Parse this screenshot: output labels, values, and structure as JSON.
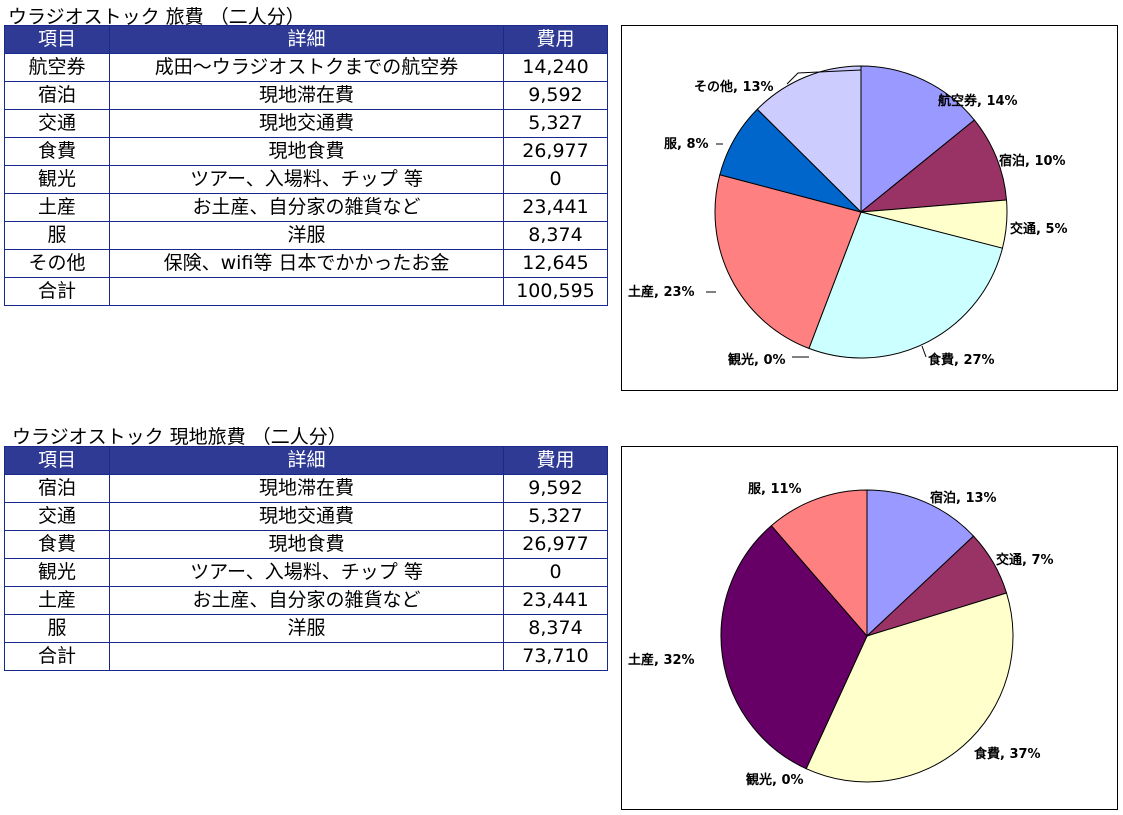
{
  "table1": {
    "title": "ウラジオストック 旅費 （二人分）",
    "headers": [
      "項目",
      "詳細",
      "費用"
    ],
    "rows": [
      [
        "航空券",
        "成田～ウラジオストクまでの航空券",
        "14,240"
      ],
      [
        "宿泊",
        "現地滞在費",
        "9,592"
      ],
      [
        "交通",
        "現地交通費",
        "5,327"
      ],
      [
        "食費",
        "現地食費",
        "26,977"
      ],
      [
        "観光",
        "ツアー、入場料、チップ 等",
        "0"
      ],
      [
        "土産",
        "お土産、自分家の雑貨など",
        "23,441"
      ],
      [
        "服",
        "洋服",
        "8,374"
      ],
      [
        "その他",
        "保険、wifi等 日本でかかったお金",
        "12,645"
      ],
      [
        "合計",
        "",
        "100,595"
      ]
    ]
  },
  "table2": {
    "title": "ウラジオストック 現地旅費 （二人分）",
    "headers": [
      "項目",
      "詳細",
      "費用"
    ],
    "rows": [
      [
        "宿泊",
        "現地滞在費",
        "9,592"
      ],
      [
        "交通",
        "現地交通費",
        "5,327"
      ],
      [
        "食費",
        "現地食費",
        "26,977"
      ],
      [
        "観光",
        "ツアー、入場料、チップ 等",
        "0"
      ],
      [
        "土産",
        "お土産、自分家の雑貨など",
        "23,441"
      ],
      [
        "服",
        "洋服",
        "8,374"
      ],
      [
        "合計",
        "",
        "73,710"
      ]
    ]
  },
  "chart_data": [
    {
      "type": "pie",
      "title": "",
      "legend": "none",
      "slices": [
        {
          "label": "航空券",
          "value": 14240,
          "percent_label": "航空券, 14%",
          "color": "#9999ff"
        },
        {
          "label": "宿泊",
          "value": 9592,
          "percent_label": "宿泊, 10%",
          "color": "#993366"
        },
        {
          "label": "交通",
          "value": 5327,
          "percent_label": "交通, 5%",
          "color": "#ffffcc"
        },
        {
          "label": "食費",
          "value": 26977,
          "percent_label": "食費, 27%",
          "color": "#ccffff"
        },
        {
          "label": "観光",
          "value": 0,
          "percent_label": "観光, 0%",
          "color": "#660066"
        },
        {
          "label": "土産",
          "value": 23441,
          "percent_label": "土産, 23%",
          "color": "#ff8080"
        },
        {
          "label": "服",
          "value": 8374,
          "percent_label": "服, 8%",
          "color": "#0066cc"
        },
        {
          "label": "その他",
          "value": 12645,
          "percent_label": "その他, 13%",
          "color": "#ccccff"
        }
      ]
    },
    {
      "type": "pie",
      "title": "",
      "legend": "none",
      "slices": [
        {
          "label": "宿泊",
          "value": 9592,
          "percent_label": "宿泊, 13%",
          "color": "#9999ff"
        },
        {
          "label": "交通",
          "value": 5327,
          "percent_label": "交通, 7%",
          "color": "#993366"
        },
        {
          "label": "食費",
          "value": 26977,
          "percent_label": "食費, 37%",
          "color": "#ffffcc"
        },
        {
          "label": "観光",
          "value": 0,
          "percent_label": "観光, 0%",
          "color": "#ccffff"
        },
        {
          "label": "土産",
          "value": 23441,
          "percent_label": "土産, 32%",
          "color": "#660066"
        },
        {
          "label": "服",
          "value": 8374,
          "percent_label": "服, 11%",
          "color": "#ff8080"
        }
      ]
    }
  ]
}
